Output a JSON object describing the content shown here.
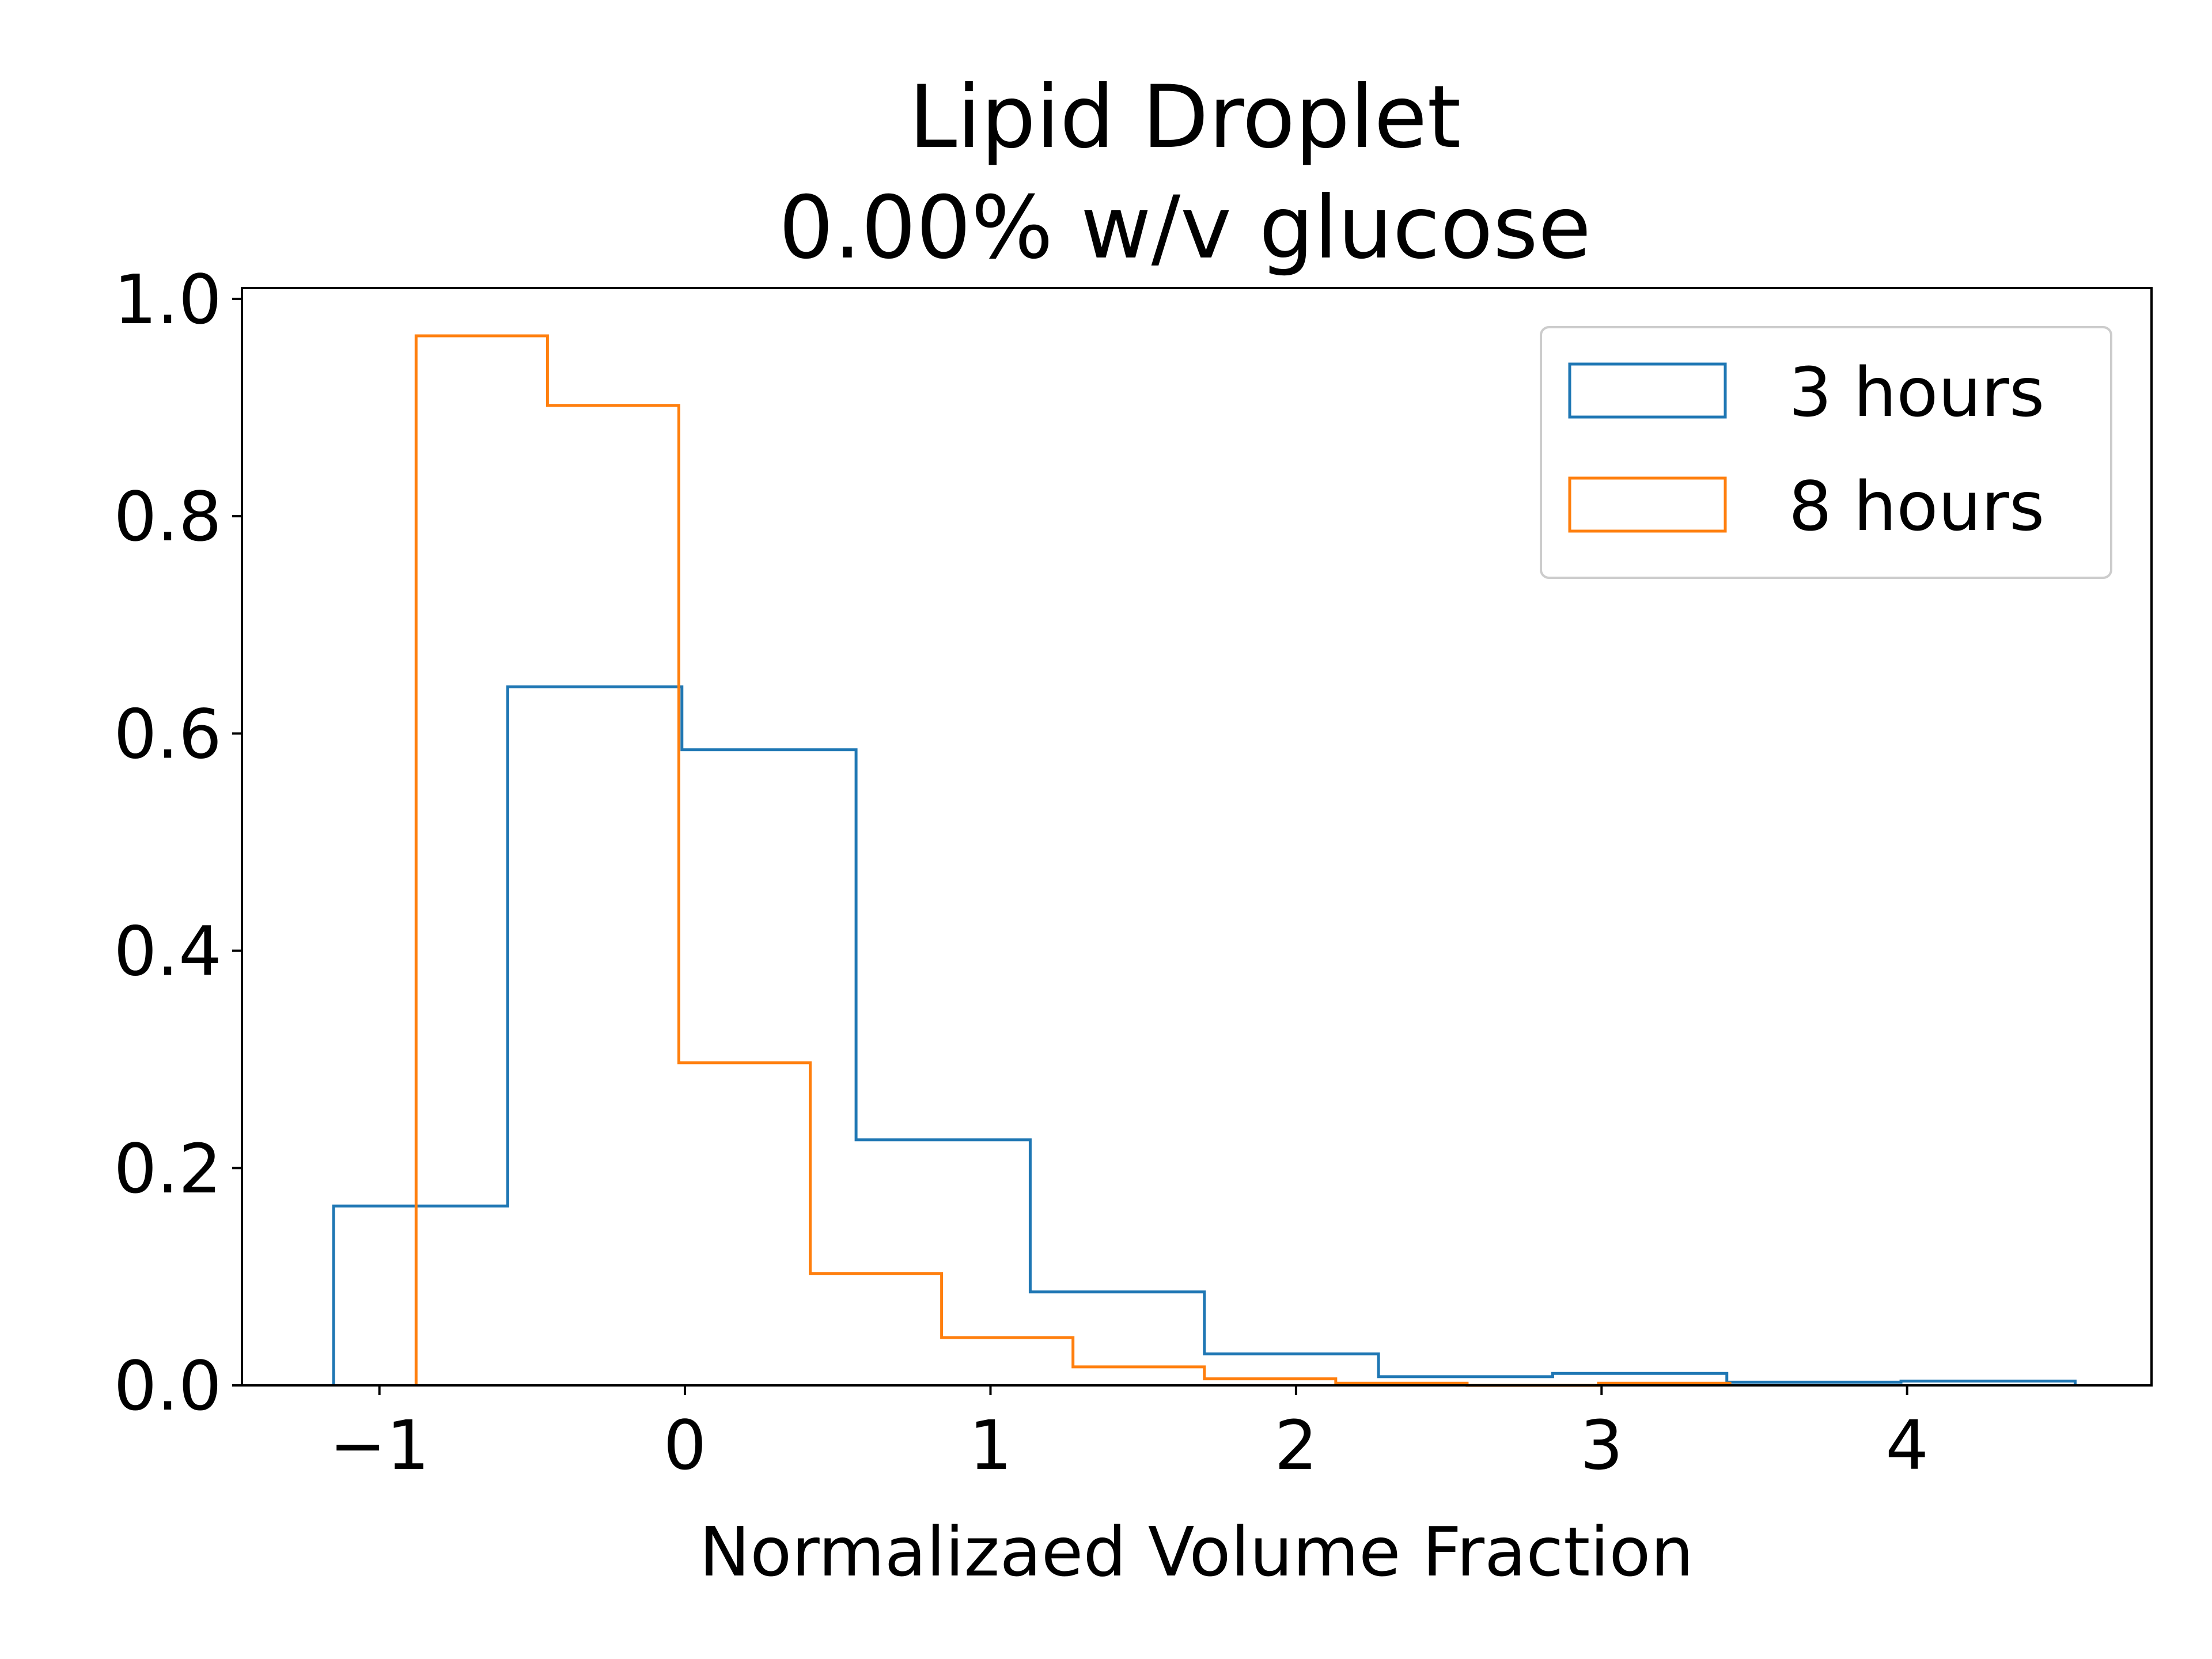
{
  "chart_data": {
    "type": "histogram",
    "title_lines": [
      "Lipid Droplet",
      "0.00% w/v glucose"
    ],
    "xlabel": "Normalizaed Volume Fraction",
    "ylabel": "",
    "xlim": [
      -1.45,
      4.8
    ],
    "ylim": [
      0.0,
      1.01
    ],
    "xticks": [
      -1,
      0,
      1,
      2,
      3,
      4
    ],
    "xtick_labels": [
      "−1",
      "0",
      "1",
      "2",
      "3",
      "4"
    ],
    "yticks": [
      0.0,
      0.2,
      0.4,
      0.6,
      0.8,
      1.0
    ],
    "ytick_labels": [
      "0.0",
      "0.2",
      "0.4",
      "0.6",
      "0.8",
      "1.0"
    ],
    "grid": false,
    "legend_placement": "top-right",
    "series": [
      {
        "name": "3 hours",
        "color": "#1f77b4",
        "bin_edges": [
          -1.15,
          -0.58,
          -0.01,
          0.56,
          1.13,
          1.7,
          2.27,
          2.84,
          3.41,
          3.98,
          4.55
        ],
        "values": [
          0.165,
          0.643,
          0.585,
          0.226,
          0.086,
          0.029,
          0.008,
          0.011,
          0.003,
          0.004
        ]
      },
      {
        "name": "8 hours",
        "color": "#ff7f0e",
        "bin_edges": [
          -0.88,
          -0.45,
          -0.02,
          0.41,
          0.84,
          1.27,
          1.7,
          2.13,
          2.56,
          2.99,
          3.42
        ],
        "values": [
          0.966,
          0.902,
          0.297,
          0.103,
          0.044,
          0.017,
          0.006,
          0.002,
          0.0,
          0.002
        ]
      }
    ]
  }
}
